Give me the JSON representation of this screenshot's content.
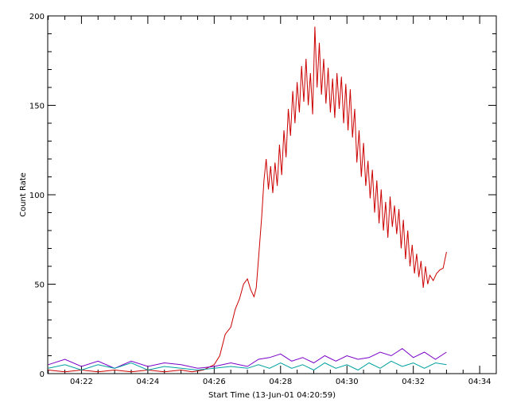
{
  "chart_data": {
    "type": "line",
    "title": "",
    "xlabel": "Start Time (13-Jun-01 04:20:59)",
    "ylabel": "Count Rate",
    "xlim": [
      "04:20:59",
      "04:34:30"
    ],
    "ylim": [
      0,
      200
    ],
    "x_ticks": [
      "04:22",
      "04:24",
      "04:26",
      "04:28",
      "04:30",
      "04:32",
      "04:34"
    ],
    "y_ticks": [
      "0",
      "50",
      "100",
      "150",
      "200"
    ],
    "grid": false,
    "series": [
      {
        "color": "#cc0000",
        "points": [
          [
            "04:21:00",
            2
          ],
          [
            "04:21:30",
            1
          ],
          [
            "04:22:00",
            2
          ],
          [
            "04:22:30",
            1
          ],
          [
            "04:23:00",
            2
          ],
          [
            "04:23:30",
            1
          ],
          [
            "04:24:00",
            2
          ],
          [
            "04:24:30",
            1
          ],
          [
            "04:25:00",
            2
          ],
          [
            "04:25:20",
            1
          ],
          [
            "04:25:40",
            2
          ],
          [
            "04:26:00",
            5
          ],
          [
            "04:26:10",
            10
          ],
          [
            "04:26:20",
            22
          ],
          [
            "04:26:30",
            26
          ],
          [
            "04:26:38",
            36
          ],
          [
            "04:26:46",
            42
          ],
          [
            "04:26:53",
            50
          ],
          [
            "04:27:00",
            53
          ],
          [
            "04:27:06",
            47
          ],
          [
            "04:27:12",
            43
          ],
          [
            "04:27:16",
            48
          ],
          [
            "04:27:21",
            68
          ],
          [
            "04:27:26",
            88
          ],
          [
            "04:27:30",
            108
          ],
          [
            "04:27:34",
            120
          ],
          [
            "04:27:38",
            103
          ],
          [
            "04:27:42",
            116
          ],
          [
            "04:27:46",
            101
          ],
          [
            "04:27:50",
            118
          ],
          [
            "04:27:54",
            105
          ],
          [
            "04:27:58",
            128
          ],
          [
            "04:28:02",
            111
          ],
          [
            "04:28:06",
            136
          ],
          [
            "04:28:10",
            121
          ],
          [
            "04:28:14",
            148
          ],
          [
            "04:28:18",
            133
          ],
          [
            "04:28:22",
            158
          ],
          [
            "04:28:26",
            140
          ],
          [
            "04:28:30",
            163
          ],
          [
            "04:28:34",
            146
          ],
          [
            "04:28:38",
            172
          ],
          [
            "04:28:42",
            152
          ],
          [
            "04:28:46",
            176
          ],
          [
            "04:28:50",
            150
          ],
          [
            "04:28:54",
            168
          ],
          [
            "04:28:58",
            145
          ],
          [
            "04:29:02",
            194
          ],
          [
            "04:29:06",
            160
          ],
          [
            "04:29:10",
            185
          ],
          [
            "04:29:14",
            156
          ],
          [
            "04:29:18",
            176
          ],
          [
            "04:29:22",
            151
          ],
          [
            "04:29:26",
            171
          ],
          [
            "04:29:30",
            146
          ],
          [
            "04:29:34",
            165
          ],
          [
            "04:29:38",
            143
          ],
          [
            "04:29:42",
            168
          ],
          [
            "04:29:46",
            148
          ],
          [
            "04:29:50",
            166
          ],
          [
            "04:29:54",
            140
          ],
          [
            "04:29:58",
            162
          ],
          [
            "04:30:02",
            136
          ],
          [
            "04:30:06",
            159
          ],
          [
            "04:30:10",
            132
          ],
          [
            "04:30:14",
            148
          ],
          [
            "04:30:18",
            118
          ],
          [
            "04:30:22",
            136
          ],
          [
            "04:30:26",
            110
          ],
          [
            "04:30:30",
            129
          ],
          [
            "04:30:34",
            105
          ],
          [
            "04:30:38",
            119
          ],
          [
            "04:30:42",
            98
          ],
          [
            "04:30:46",
            114
          ],
          [
            "04:30:50",
            90
          ],
          [
            "04:30:54",
            108
          ],
          [
            "04:30:58",
            84
          ],
          [
            "04:31:02",
            103
          ],
          [
            "04:31:06",
            80
          ],
          [
            "04:31:10",
            96
          ],
          [
            "04:31:14",
            76
          ],
          [
            "04:31:18",
            99
          ],
          [
            "04:31:22",
            82
          ],
          [
            "04:31:26",
            94
          ],
          [
            "04:31:30",
            78
          ],
          [
            "04:31:34",
            92
          ],
          [
            "04:31:38",
            70
          ],
          [
            "04:31:42",
            86
          ],
          [
            "04:31:46",
            64
          ],
          [
            "04:31:50",
            80
          ],
          [
            "04:31:54",
            60
          ],
          [
            "04:31:58",
            72
          ],
          [
            "04:32:02",
            56
          ],
          [
            "04:32:06",
            67
          ],
          [
            "04:32:10",
            54
          ],
          [
            "04:32:14",
            63
          ],
          [
            "04:32:18",
            48
          ],
          [
            "04:32:22",
            60
          ],
          [
            "04:32:26",
            50
          ],
          [
            "04:32:30",
            55
          ],
          [
            "04:32:36",
            52
          ],
          [
            "04:32:42",
            56
          ],
          [
            "04:32:48",
            58
          ],
          [
            "04:32:54",
            59
          ],
          [
            "04:33:00",
            68
          ]
        ]
      },
      {
        "color": "#7a00c8",
        "points": [
          [
            "04:21:00",
            5
          ],
          [
            "04:21:30",
            8
          ],
          [
            "04:22:00",
            4
          ],
          [
            "04:22:30",
            7
          ],
          [
            "04:23:00",
            3
          ],
          [
            "04:23:30",
            7
          ],
          [
            "04:24:00",
            4
          ],
          [
            "04:24:30",
            6
          ],
          [
            "04:25:00",
            5
          ],
          [
            "04:25:30",
            3
          ],
          [
            "04:26:00",
            4
          ],
          [
            "04:26:30",
            6
          ],
          [
            "04:27:00",
            4
          ],
          [
            "04:27:20",
            8
          ],
          [
            "04:27:40",
            9
          ],
          [
            "04:28:00",
            11
          ],
          [
            "04:28:20",
            7
          ],
          [
            "04:28:40",
            9
          ],
          [
            "04:29:00",
            6
          ],
          [
            "04:29:20",
            10
          ],
          [
            "04:29:40",
            7
          ],
          [
            "04:30:00",
            10
          ],
          [
            "04:30:20",
            8
          ],
          [
            "04:30:40",
            9
          ],
          [
            "04:31:00",
            12
          ],
          [
            "04:31:20",
            10
          ],
          [
            "04:31:40",
            14
          ],
          [
            "04:32:00",
            9
          ],
          [
            "04:32:20",
            12
          ],
          [
            "04:32:40",
            8
          ],
          [
            "04:33:00",
            12
          ]
        ]
      },
      {
        "color": "#00a0a0",
        "points": [
          [
            "04:21:00",
            3
          ],
          [
            "04:21:30",
            5
          ],
          [
            "04:22:00",
            2
          ],
          [
            "04:22:30",
            5
          ],
          [
            "04:23:00",
            3
          ],
          [
            "04:23:30",
            6
          ],
          [
            "04:24:00",
            2
          ],
          [
            "04:24:30",
            4
          ],
          [
            "04:25:00",
            3
          ],
          [
            "04:25:30",
            2
          ],
          [
            "04:26:00",
            3
          ],
          [
            "04:26:30",
            4
          ],
          [
            "04:27:00",
            3
          ],
          [
            "04:27:20",
            5
          ],
          [
            "04:27:40",
            3
          ],
          [
            "04:28:00",
            6
          ],
          [
            "04:28:20",
            3
          ],
          [
            "04:28:40",
            5
          ],
          [
            "04:29:00",
            2
          ],
          [
            "04:29:20",
            6
          ],
          [
            "04:29:40",
            3
          ],
          [
            "04:30:00",
            5
          ],
          [
            "04:30:20",
            2
          ],
          [
            "04:30:40",
            6
          ],
          [
            "04:31:00",
            3
          ],
          [
            "04:31:20",
            7
          ],
          [
            "04:31:40",
            4
          ],
          [
            "04:32:00",
            6
          ],
          [
            "04:32:20",
            3
          ],
          [
            "04:32:40",
            6
          ],
          [
            "04:33:00",
            5
          ]
        ]
      }
    ]
  }
}
